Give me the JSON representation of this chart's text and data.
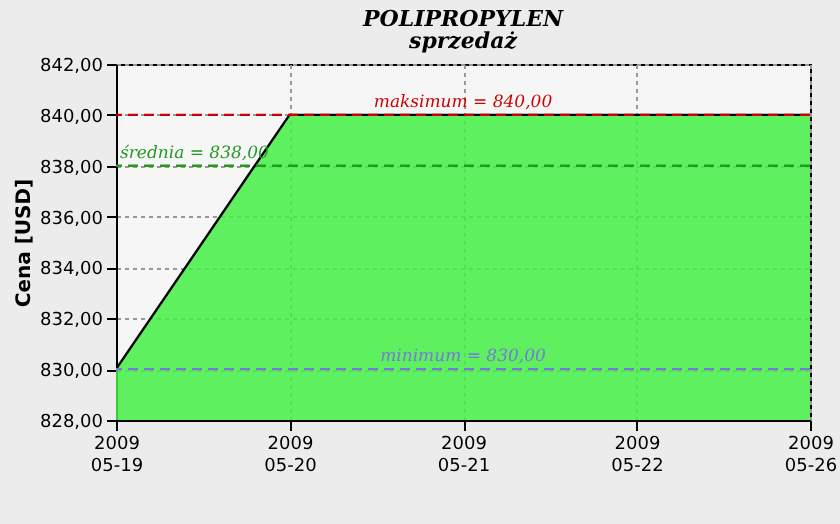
{
  "chart_data": {
    "type": "area",
    "title": "POLIPROPYLEN",
    "subtitle": "sprzedaż",
    "ylabel": "Cena [USD]",
    "categories": [
      "2009\n05-19",
      "2009\n05-20",
      "2009\n05-21",
      "2009\n05-22",
      "2009\n05-26"
    ],
    "series": [
      {
        "color": "#44ee44",
        "values": [
          830,
          840,
          840,
          840,
          840
        ]
      }
    ],
    "ylim": [
      828,
      842
    ],
    "yticks": [
      {
        "value": 828,
        "label": "828,00"
      },
      {
        "value": 830,
        "label": "830,00"
      },
      {
        "value": 832,
        "label": "832,00"
      },
      {
        "value": 834,
        "label": "834,00"
      },
      {
        "value": 836,
        "label": "836,00"
      },
      {
        "value": 838,
        "label": "838,00"
      },
      {
        "value": 840,
        "label": "840,00"
      },
      {
        "value": 842,
        "label": "842,00"
      }
    ],
    "ref_lines": [
      {
        "axis": "y",
        "value": 840,
        "label": "maksimum = 840,00",
        "color": "#cc0000",
        "line_style": "dashed"
      },
      {
        "axis": "y",
        "value": 838,
        "label": "średnia = 838,00",
        "color": "#229922",
        "line_style": "dashed"
      },
      {
        "axis": "y",
        "value": 830,
        "label": "minimum = 830,00",
        "color": "#7777dd",
        "line_style": "dashed"
      }
    ],
    "grid": true
  }
}
